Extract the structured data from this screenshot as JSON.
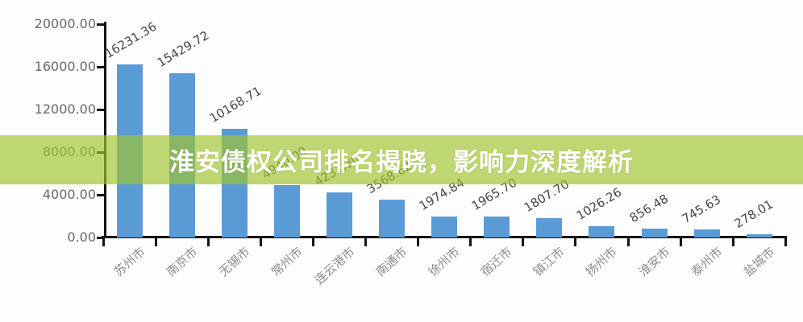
{
  "banner": {
    "text": "淮安债权公司排名揭晓，影响力深度解析",
    "background_color": "#a0c32c",
    "text_color": "#ffffff"
  },
  "chart_data": {
    "type": "bar",
    "title": "",
    "xlabel": "",
    "ylabel": "",
    "categories": [
      "苏州市",
      "南京市",
      "无锡市",
      "常州市",
      "连云港市",
      "南通市",
      "徐州市",
      "宿迁市",
      "镇江市",
      "扬州市",
      "淮安市",
      "泰州市",
      "盐城市"
    ],
    "values": [
      16231.36,
      15429.72,
      10168.71,
      4940.0,
      4231.3,
      3568.62,
      1974.84,
      1965.7,
      1807.7,
      1026.26,
      856.48,
      745.63,
      278.01
    ],
    "y_tick_labels": [
      "20000.00",
      "16000.00",
      "12000.00",
      "8000.00",
      "4000.00",
      "0.00"
    ],
    "ylim": [
      0,
      20000
    ],
    "grid": false,
    "legend": null,
    "bar_color": "#5b9bd5",
    "value_label_decimals": 2
  }
}
